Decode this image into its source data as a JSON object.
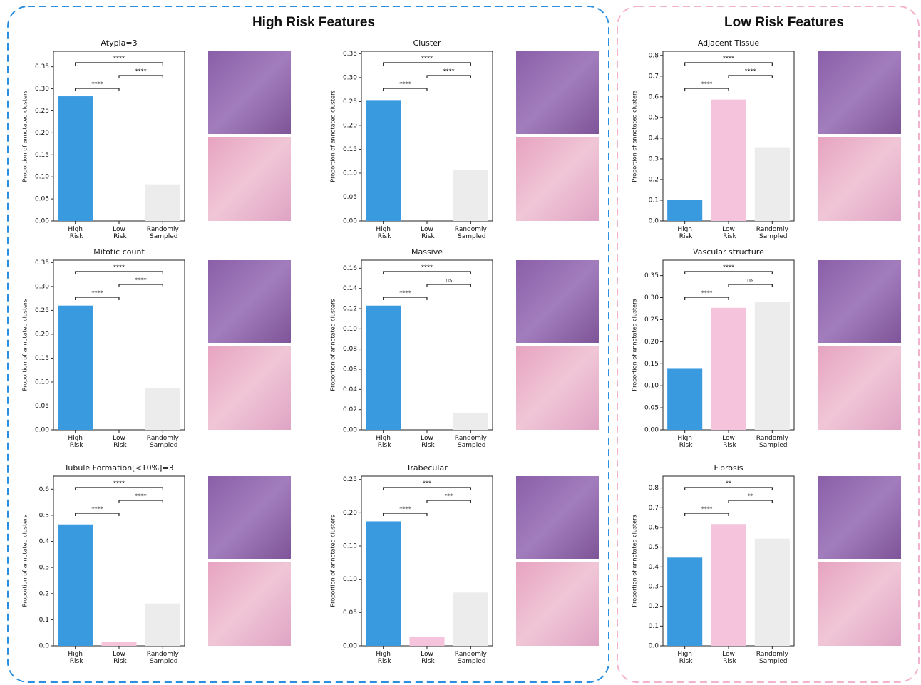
{
  "sections": [
    "High Risk Features",
    "Low Risk Features"
  ],
  "chart_data": [
    {
      "type": "bar",
      "title": "Atypia=3",
      "ylabel": "Proportion of annotated clusters",
      "categories": [
        "High Risk",
        "Low Risk",
        "Randomly Sampled"
      ],
      "values": [
        0.283,
        0,
        0.083
      ],
      "colors": [
        "#3a9ae0",
        "#f6c3dc",
        "#ececec"
      ],
      "ylim": [
        0,
        0.385
      ],
      "yticks": [
        {
          "value": 0,
          "label": "0.00"
        },
        0.05,
        {
          "value": 0.1,
          "label": "0.10"
        },
        0.15,
        {
          "value": 0.2,
          "label": "0.20"
        },
        0.25,
        {
          "value": 0.3,
          "label": "0.30"
        },
        0.35
      ],
      "annotations": [
        {
          "from": "High Risk",
          "to": "Randomly Sampled",
          "label": "****"
        },
        {
          "from": "Low Risk",
          "to": "Randomly Sampled",
          "label": "****"
        },
        {
          "from": "High Risk",
          "to": "Low Risk",
          "label": "****"
        }
      ]
    },
    {
      "type": "bar",
      "title": "Cluster",
      "ylabel": "Proportion of annotated clusters",
      "categories": [
        "High Risk",
        "Low Risk",
        "Randomly Sampled"
      ],
      "values": [
        0.253,
        0,
        0.106
      ],
      "colors": [
        "#3a9ae0",
        "#f6c3dc",
        "#ececec"
      ],
      "ylim": [
        0,
        0.355
      ],
      "yticks": [
        {
          "value": 0,
          "label": "0.00"
        },
        0.05,
        {
          "value": 0.1,
          "label": "0.10"
        },
        0.15,
        {
          "value": 0.2,
          "label": "0.20"
        },
        0.25,
        {
          "value": 0.3,
          "label": "0.30"
        },
        0.35
      ],
      "annotations": [
        {
          "from": "High Risk",
          "to": "Randomly Sampled",
          "label": "****"
        },
        {
          "from": "Low Risk",
          "to": "Randomly Sampled",
          "label": "****"
        },
        {
          "from": "High Risk",
          "to": "Low Risk",
          "label": "****"
        }
      ]
    },
    {
      "type": "bar",
      "title": "Adjacent Tissue",
      "ylabel": "Proportion of annotated clusters",
      "categories": [
        "High Risk",
        "Low Risk",
        "Randomly Sampled"
      ],
      "values": [
        0.1,
        0.587,
        0.356
      ],
      "colors": [
        "#3a9ae0",
        "#f6c3dc",
        "#ececec"
      ],
      "ylim": [
        0,
        0.82
      ],
      "yticks": [
        {
          "value": 0,
          "label": "0.0"
        },
        0.1,
        0.2,
        0.3,
        0.4,
        0.5,
        0.6,
        0.7,
        0.8
      ],
      "annotations": [
        {
          "from": "High Risk",
          "to": "Randomly Sampled",
          "label": "****"
        },
        {
          "from": "Low Risk",
          "to": "Randomly Sampled",
          "label": "****"
        },
        {
          "from": "High Risk",
          "to": "Low Risk",
          "label": "****"
        }
      ]
    },
    {
      "type": "bar",
      "title": "Mitotic count",
      "ylabel": "Proportion of annotated clusters",
      "categories": [
        "High Risk",
        "Low Risk",
        "Randomly Sampled"
      ],
      "values": [
        0.26,
        0,
        0.087
      ],
      "colors": [
        "#3a9ae0",
        "#f6c3dc",
        "#ececec"
      ],
      "ylim": [
        0,
        0.355
      ],
      "yticks": [
        {
          "value": 0,
          "label": "0.00"
        },
        0.05,
        {
          "value": 0.1,
          "label": "0.10"
        },
        0.15,
        {
          "value": 0.2,
          "label": "0.20"
        },
        0.25,
        {
          "value": 0.3,
          "label": "0.30"
        },
        0.35
      ],
      "annotations": [
        {
          "from": "High Risk",
          "to": "Randomly Sampled",
          "label": "****"
        },
        {
          "from": "Low Risk",
          "to": "Randomly Sampled",
          "label": "****"
        },
        {
          "from": "High Risk",
          "to": "Low Risk",
          "label": "****"
        }
      ]
    },
    {
      "type": "bar",
      "title": "Massive",
      "ylabel": "Proportion of annotated clusters",
      "categories": [
        "High Risk",
        "Low Risk",
        "Randomly Sampled"
      ],
      "values": [
        0.123,
        0,
        0.017
      ],
      "colors": [
        "#3a9ae0",
        "#f6c3dc",
        "#ececec"
      ],
      "ylim": [
        0,
        0.168
      ],
      "yticks": [
        {
          "value": 0,
          "label": "0.00"
        },
        0.02,
        0.04,
        0.06,
        0.08,
        {
          "value": 0.1,
          "label": "0.10"
        },
        0.12,
        0.14,
        0.16
      ],
      "annotations": [
        {
          "from": "High Risk",
          "to": "Randomly Sampled",
          "label": "****"
        },
        {
          "from": "Low Risk",
          "to": "Randomly Sampled",
          "label": "ns"
        },
        {
          "from": "High Risk",
          "to": "Low Risk",
          "label": "****"
        }
      ]
    },
    {
      "type": "bar",
      "title": "Vascular structure",
      "ylabel": "Proportion of annotated clusters",
      "categories": [
        "High Risk",
        "Low Risk",
        "Randomly Sampled"
      ],
      "values": [
        0.14,
        0.277,
        0.29
      ],
      "colors": [
        "#3a9ae0",
        "#f6c3dc",
        "#ececec"
      ],
      "ylim": [
        0,
        0.385
      ],
      "yticks": [
        {
          "value": 0,
          "label": "0.00"
        },
        0.05,
        {
          "value": 0.1,
          "label": "0.10"
        },
        0.15,
        {
          "value": 0.2,
          "label": "0.20"
        },
        0.25,
        {
          "value": 0.3,
          "label": "0.30"
        },
        0.35
      ],
      "annotations": [
        {
          "from": "High Risk",
          "to": "Randomly Sampled",
          "label": "****"
        },
        {
          "from": "Low Risk",
          "to": "Randomly Sampled",
          "label": "ns"
        },
        {
          "from": "High Risk",
          "to": "Low Risk",
          "label": "****"
        }
      ]
    },
    {
      "type": "bar",
      "title": "Tubule Formation[<10%]=3",
      "ylabel": "Proportion of annotated clusters",
      "categories": [
        "High Risk",
        "Low Risk",
        "Randomly Sampled"
      ],
      "values": [
        0.465,
        0.015,
        0.162
      ],
      "colors": [
        "#3a9ae0",
        "#f6c3dc",
        "#ececec"
      ],
      "ylim": [
        0,
        0.65
      ],
      "yticks": [
        {
          "value": 0,
          "label": "0.0"
        },
        0.1,
        0.2,
        0.3,
        0.4,
        0.5,
        0.6
      ],
      "annotations": [
        {
          "from": "High Risk",
          "to": "Randomly Sampled",
          "label": "****"
        },
        {
          "from": "Low Risk",
          "to": "Randomly Sampled",
          "label": "****"
        },
        {
          "from": "High Risk",
          "to": "Low Risk",
          "label": "****"
        }
      ]
    },
    {
      "type": "bar",
      "title": "Trabecular",
      "ylabel": "Proportion of annotated clusters",
      "categories": [
        "High Risk",
        "Low Risk",
        "Randomly Sampled"
      ],
      "values": [
        0.187,
        0.014,
        0.08
      ],
      "colors": [
        "#3a9ae0",
        "#f6c3dc",
        "#ececec"
      ],
      "ylim": [
        0,
        0.255
      ],
      "yticks": [
        {
          "value": 0,
          "label": "0.00"
        },
        0.05,
        {
          "value": 0.1,
          "label": "0.10"
        },
        0.15,
        {
          "value": 0.2,
          "label": "0.20"
        },
        0.25
      ],
      "annotations": [
        {
          "from": "High Risk",
          "to": "Randomly Sampled",
          "label": "***"
        },
        {
          "from": "Low Risk",
          "to": "Randomly Sampled",
          "label": "***"
        },
        {
          "from": "High Risk",
          "to": "Low Risk",
          "label": "****"
        }
      ]
    },
    {
      "type": "bar",
      "title": "Fibrosis",
      "ylabel": "Proportion of annotated clusters",
      "categories": [
        "High Risk",
        "Low Risk",
        "Randomly Sampled"
      ],
      "values": [
        0.447,
        0.617,
        0.543
      ],
      "colors": [
        "#3a9ae0",
        "#f6c3dc",
        "#ececec"
      ],
      "ylim": [
        0,
        0.86
      ],
      "yticks": [
        {
          "value": 0,
          "label": "0.0"
        },
        0.1,
        0.2,
        0.3,
        0.4,
        0.5,
        0.6,
        0.7,
        0.8
      ],
      "annotations": [
        {
          "from": "High Risk",
          "to": "Randomly Sampled",
          "label": "**"
        },
        {
          "from": "Low Risk",
          "to": "Randomly Sampled",
          "label": "**"
        },
        {
          "from": "High Risk",
          "to": "Low Risk",
          "label": "****"
        }
      ]
    }
  ]
}
